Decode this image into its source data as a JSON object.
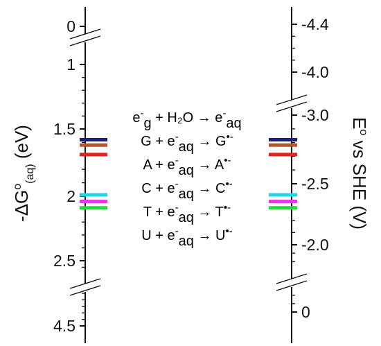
{
  "chart_data": {
    "type": "energy-level diagram",
    "left_axis": {
      "title_prefix": "-ΔG",
      "title_superscript": "o",
      "title_subscript": "(aq)",
      "title_suffix": " (eV)",
      "tick_labels": [
        "0",
        "1",
        "1.5",
        "2",
        "2.5",
        "4.5"
      ],
      "tick_values": [
        0,
        1,
        1.5,
        2,
        2.5,
        4.5
      ],
      "breaks": [
        "between 0 and 1",
        "between 2.5 and 4.5"
      ],
      "range": [
        0,
        4.5
      ]
    },
    "right_axis": {
      "title_main": "E",
      "title_superscript": "o",
      "title_rest": " vs SHE (V)",
      "tick_labels": [
        "-4.4",
        "-4.0",
        "-3.0",
        "-2.5",
        "-2.0",
        "0"
      ],
      "tick_values": [
        -4.4,
        -4.0,
        -3.0,
        -2.5,
        -2.0,
        0
      ],
      "breaks": [
        "between -4.0 and -3.0",
        "between -2.0 and 0"
      ],
      "range": [
        -4.4,
        0
      ]
    },
    "levels": [
      {
        "species": "e-aq",
        "delta_g_eV": 1.58,
        "color": "#1f1f7a"
      },
      {
        "species": "G",
        "delta_g_eV": 1.62,
        "color": "#b4552a"
      },
      {
        "species": "A",
        "delta_g_eV": 1.69,
        "color": "#e0241b"
      },
      {
        "species": "C",
        "delta_g_eV": 1.99,
        "color": "#19d8e8"
      },
      {
        "species": "T",
        "delta_g_eV": 2.04,
        "color": "#e43ee0"
      },
      {
        "species": "U",
        "delta_g_eV": 2.09,
        "color": "#22dc3a"
      }
    ],
    "reactions": [
      {
        "parts": [
          {
            "t": "e"
          },
          {
            "t": "-",
            "sup": true
          },
          {
            "t": "g",
            "sub": true
          },
          {
            "t": " + H₂O → e"
          },
          {
            "t": "-",
            "sup": true
          },
          {
            "t": "aq",
            "sub": true
          }
        ],
        "color": "#1f1f7a"
      },
      {
        "parts": [
          {
            "t": "G + e"
          },
          {
            "t": "-",
            "sup": true
          },
          {
            "t": "aq",
            "sub": true
          },
          {
            "t": " → G"
          },
          {
            "t": "•-",
            "sup": true
          }
        ],
        "color": "#b4552a"
      },
      {
        "parts": [
          {
            "t": "A + e"
          },
          {
            "t": "-",
            "sup": true
          },
          {
            "t": "aq",
            "sub": true
          },
          {
            "t": " → A"
          },
          {
            "t": "•-",
            "sup": true
          }
        ],
        "color": "#e0241b"
      },
      {
        "parts": [
          {
            "t": "C + e"
          },
          {
            "t": "-",
            "sup": true
          },
          {
            "t": "aq",
            "sub": true
          },
          {
            "t": " → C"
          },
          {
            "t": "•-",
            "sup": true
          }
        ],
        "color": "#19d8e8"
      },
      {
        "parts": [
          {
            "t": "T + e"
          },
          {
            "t": "-",
            "sup": true
          },
          {
            "t": "aq",
            "sub": true
          },
          {
            "t": " → T"
          },
          {
            "t": "•-",
            "sup": true
          }
        ],
        "color": "#e43ee0"
      },
      {
        "parts": [
          {
            "t": "U + e"
          },
          {
            "t": "-",
            "sup": true
          },
          {
            "t": "aq",
            "sub": true
          },
          {
            "t": " → U"
          },
          {
            "t": "•-",
            "sup": true
          }
        ],
        "color": "#22dc3a"
      }
    ]
  }
}
